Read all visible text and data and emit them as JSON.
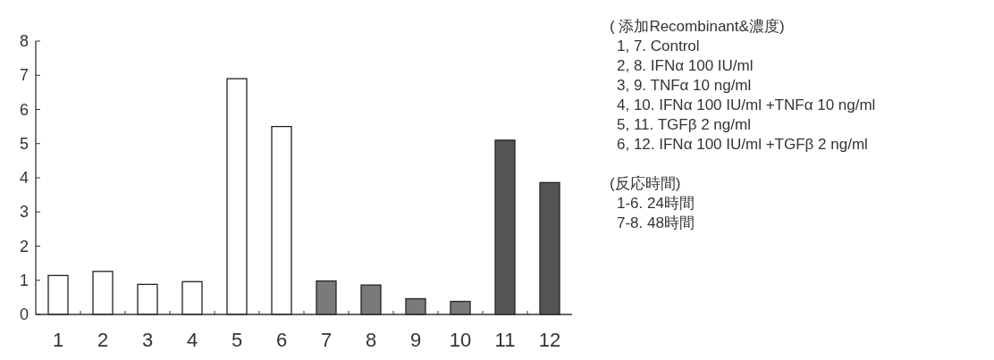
{
  "chart_data": {
    "type": "bar",
    "categories": [
      "1",
      "2",
      "3",
      "4",
      "5",
      "6",
      "7",
      "8",
      "9",
      "10",
      "11",
      "12"
    ],
    "values": [
      1.14,
      1.26,
      0.88,
      0.96,
      6.9,
      5.5,
      0.98,
      0.86,
      0.46,
      0.38,
      5.1,
      3.86
    ],
    "colors": [
      "#ffffff",
      "#ffffff",
      "#ffffff",
      "#ffffff",
      "#ffffff",
      "#ffffff",
      "#7a7a7a",
      "#7a7a7a",
      "#7a7a7a",
      "#7a7a7a",
      "#555555",
      "#555555"
    ],
    "ylim": [
      0,
      8
    ],
    "yticks": [
      0,
      1,
      2,
      3,
      4,
      5,
      6,
      7,
      8
    ],
    "annotations": [
      "( 添加Recombinant&濃度)",
      "1, 7. Control",
      "2, 8. IFNα 100 IU/ml",
      "3, 9. TNFα 10 ng/ml",
      "4, 10. IFNα 100 IU/ml +TNFα 10 ng/ml",
      "5, 11. TGFβ 2 ng/ml",
      "6, 12. IFNα 100 IU/ml +TGFβ 2 ng/ml",
      "(反応時間)",
      "1-6. 24時間",
      "7-8. 48時間"
    ]
  }
}
